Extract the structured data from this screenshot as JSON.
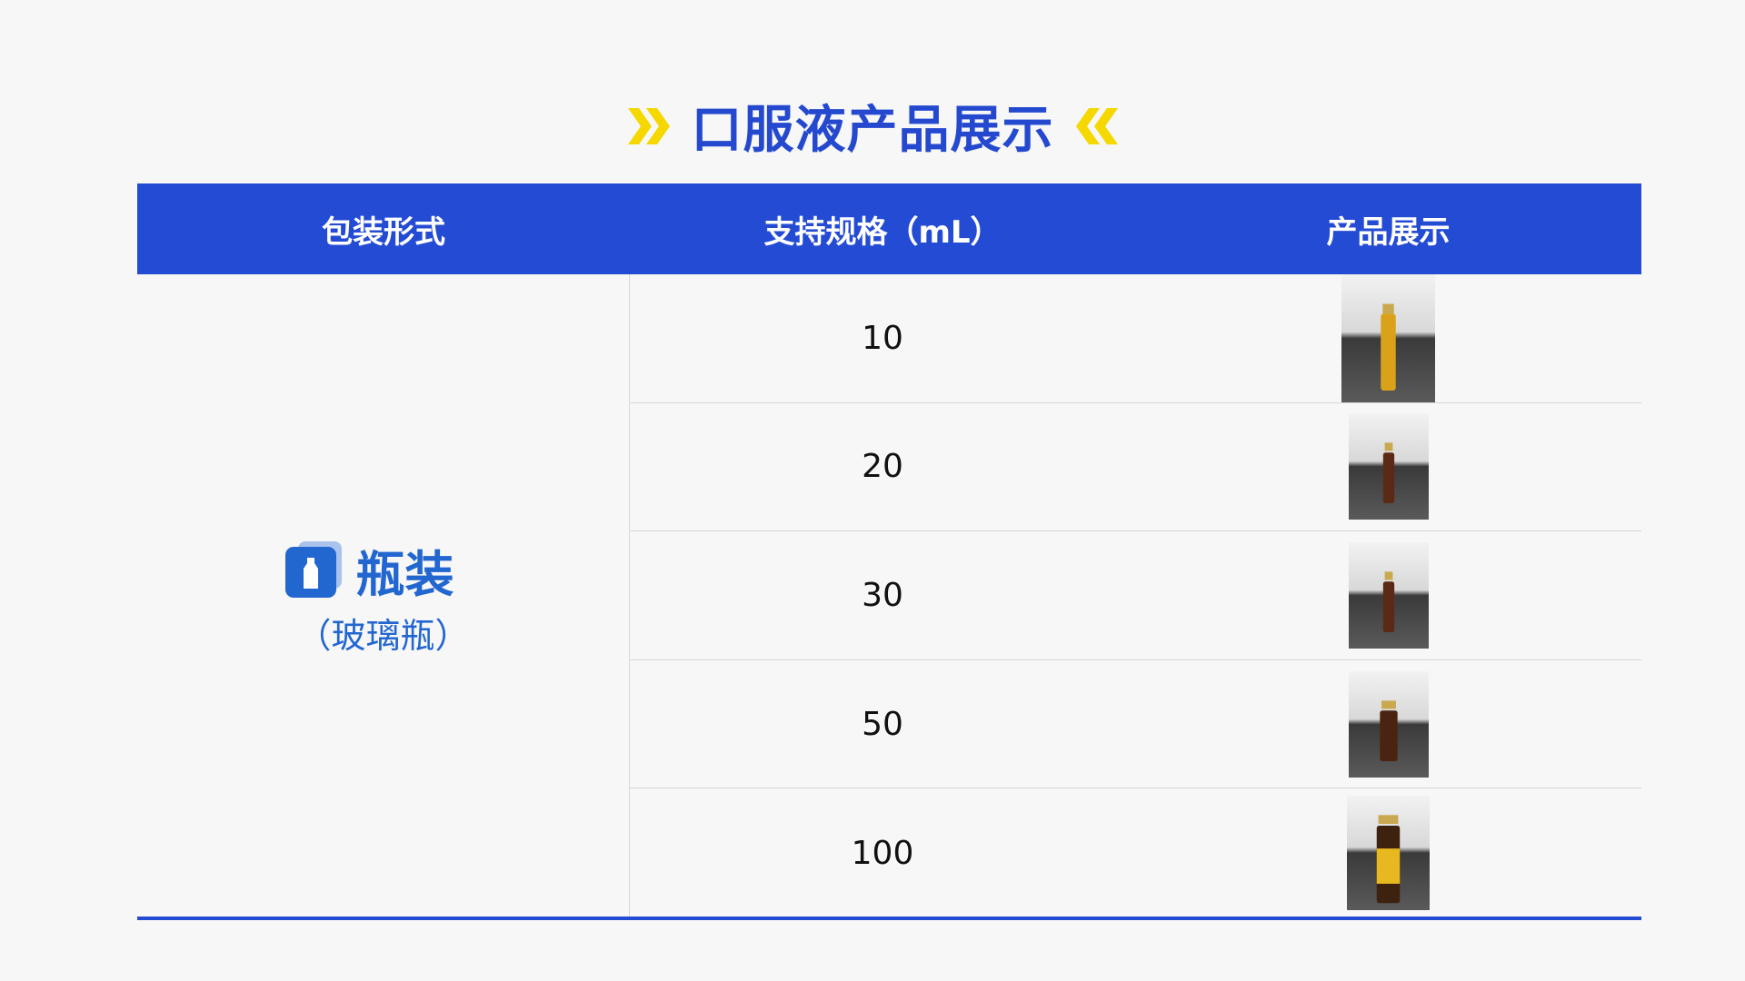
{
  "title": "口服液产品展示",
  "colors": {
    "accent": "#244bd3",
    "chevron": "#f5d800",
    "package": "#2266d0"
  },
  "table": {
    "headers": [
      "包装形式",
      "支持规格（mL）",
      "产品展示"
    ],
    "package": {
      "name": "瓶装",
      "sub": "（玻璃瓶）",
      "icon": "bottle-icon"
    },
    "rows": [
      {
        "volume": "10",
        "liquid": "#d9a21a"
      },
      {
        "volume": "20",
        "liquid": "#5a2a14"
      },
      {
        "volume": "30",
        "liquid": "#5a2a14"
      },
      {
        "volume": "50",
        "liquid": "#4a2410"
      },
      {
        "volume": "100",
        "liquid": "#3e2210"
      }
    ]
  }
}
